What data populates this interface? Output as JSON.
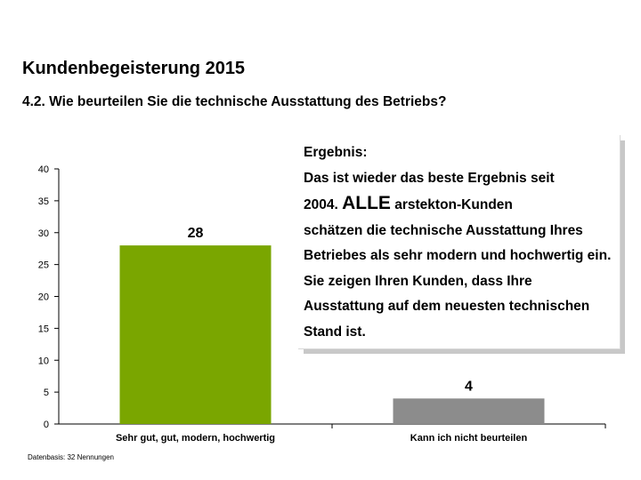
{
  "header": {
    "title": "Kundenbegeisterung 2015",
    "subtitle": "4.2. Wie beurteilen Sie die technische Ausstattung des Betriebs?"
  },
  "callout": {
    "heading": "Ergebnis:",
    "line1": "Das ist wieder das beste Ergebnis seit",
    "line2_start": "2004.",
    "emphasis": "ALLE",
    "line2_end": "arstekton-Kunden",
    "rest": "schätzen die technische Ausstattung Ihres Betriebes als sehr modern und hochwertig ein. Sie zeigen Ihren Kunden, dass Ihre Ausstattung auf dem neuesten technischen Stand ist."
  },
  "footnote": "Datenbasis: 32 Nennungen",
  "chart_data": {
    "type": "bar",
    "title": "",
    "xlabel": "",
    "ylabel": "",
    "categories": [
      "Sehr gut, gut, modern, hochwertig",
      "Kann ich nicht beurteilen"
    ],
    "values": [
      28,
      4
    ],
    "data_labels": [
      "28",
      "4"
    ],
    "colors": [
      "#7aa600",
      "#8c8c8c"
    ],
    "ylim": [
      0,
      40
    ],
    "yticks": [
      "0",
      "5",
      "10",
      "15",
      "20",
      "25",
      "30",
      "35",
      "40"
    ],
    "grid": false
  }
}
